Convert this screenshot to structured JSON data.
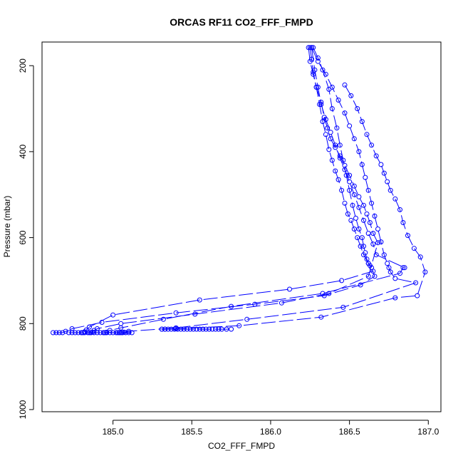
{
  "chart_data": {
    "type": "line",
    "title": "ORCAS RF11 CO2_FFF_FMPD",
    "xlabel": "CO2_FFF_FMPD",
    "ylabel": "Pressure (mbar)",
    "xlim": [
      184.55,
      187.08
    ],
    "ylim": [
      1005,
      145
    ],
    "y_reversed": true,
    "x_ticks": [
      185.0,
      185.5,
      186.0,
      186.5,
      187.0
    ],
    "x_tick_labels": [
      "185.0",
      "185.5",
      "186.0",
      "186.5",
      "187.0"
    ],
    "y_ticks": [
      200,
      400,
      600,
      800,
      1000
    ],
    "y_tick_labels": [
      "200",
      "400",
      "600",
      "800",
      "1000"
    ],
    "grid": false,
    "legend": "none",
    "line_color": "#0000ff",
    "series": [
      {
        "x": [
          186.27,
          186.3,
          186.33,
          186.37,
          186.39,
          186.42,
          186.44,
          186.46,
          186.48,
          186.5,
          186.52,
          186.54,
          186.56,
          186.58,
          186.59,
          186.6,
          186.61,
          186.62,
          186.63,
          186.64,
          186.66,
          186.57,
          186.34,
          185.9,
          185.4,
          184.93,
          184.74,
          184.7,
          184.68,
          184.66,
          184.64,
          184.62
        ],
        "y": [
          158,
          182,
          210,
          255,
          300,
          345,
          385,
          420,
          455,
          490,
          525,
          555,
          580,
          600,
          620,
          635,
          650,
          660,
          665,
          670,
          690,
          710,
          735,
          755,
          775,
          797,
          812,
          818,
          821,
          821,
          821,
          821
        ]
      },
      {
        "x": [
          186.25,
          186.26,
          186.27,
          186.29,
          186.31,
          186.33,
          186.35,
          186.37,
          186.39,
          186.41,
          186.43,
          186.45,
          186.47,
          186.49,
          186.51,
          186.53,
          186.55,
          186.57,
          186.59,
          186.62,
          186.65,
          186.45,
          186.12,
          185.55,
          185.0,
          184.85,
          184.83,
          184.82,
          184.81,
          184.8
        ],
        "y": [
          158,
          185,
          215,
          250,
          290,
          330,
          360,
          395,
          420,
          445,
          465,
          490,
          520,
          545,
          560,
          580,
          600,
          620,
          640,
          660,
          678,
          700,
          720,
          745,
          780,
          808,
          815,
          819,
          821,
          821
        ]
      },
      {
        "x": [
          186.24,
          186.25,
          186.27,
          186.29,
          186.32,
          186.34,
          186.36,
          186.38,
          186.41,
          186.44,
          186.47,
          186.5,
          186.53,
          186.56,
          186.59,
          186.61,
          186.63,
          186.65,
          186.68,
          186.62,
          186.37,
          186.07,
          185.52,
          185.05,
          184.9,
          184.88,
          184.87,
          184.86,
          184.85
        ],
        "y": [
          158,
          190,
          220,
          250,
          285,
          320,
          345,
          370,
          390,
          410,
          432,
          455,
          480,
          505,
          525,
          545,
          565,
          590,
          612,
          690,
          730,
          752,
          778,
          800,
          812,
          816,
          820,
          821,
          821
        ]
      },
      {
        "x": [
          186.26,
          186.28,
          186.3,
          186.32,
          186.35,
          186.38,
          186.41,
          186.44,
          186.47,
          186.5,
          186.53,
          186.56,
          186.59,
          186.62,
          186.65,
          186.67,
          186.85,
          186.84,
          186.82,
          186.33,
          185.75,
          185.32,
          185.05,
          184.98,
          184.96,
          184.95,
          184.94
        ],
        "y": [
          158,
          210,
          250,
          290,
          325,
          355,
          385,
          415,
          442,
          470,
          500,
          530,
          560,
          590,
          615,
          640,
          670,
          670,
          683,
          730,
          760,
          790,
          810,
          816,
          820,
          821,
          821
        ]
      },
      {
        "x": [
          186.26,
          186.3,
          186.35,
          186.39,
          186.43,
          186.47,
          186.5,
          186.53,
          186.56,
          186.58,
          186.6,
          186.62,
          186.64,
          186.66,
          186.68,
          186.7,
          186.72,
          186.74,
          186.75,
          186.76,
          186.79,
          186.92,
          186.46,
          185.85,
          185.4,
          185.1,
          185.07,
          185.06,
          185.05,
          185.04,
          185.03
        ],
        "y": [
          158,
          190,
          220,
          250,
          280,
          310,
          340,
          370,
          400,
          430,
          460,
          490,
          520,
          550,
          580,
          610,
          640,
          660,
          670,
          680,
          695,
          705,
          762,
          790,
          810,
          818,
          820,
          821,
          821,
          821,
          821
        ]
      },
      {
        "x": [
          186.47,
          186.51,
          186.55,
          186.58,
          186.61,
          186.64,
          186.67,
          186.7,
          186.72,
          186.74,
          186.76,
          186.79,
          186.82,
          186.84,
          186.87,
          186.91,
          186.95,
          186.98,
          186.93,
          186.79,
          186.32,
          185.8,
          185.4,
          185.33,
          185.31
        ],
        "y": [
          245,
          270,
          300,
          330,
          360,
          385,
          410,
          430,
          450,
          470,
          490,
          510,
          535,
          565,
          595,
          625,
          645,
          680,
          735,
          740,
          785,
          805,
          812,
          813,
          813
        ]
      },
      {
        "x": [
          185.31,
          185.33,
          185.35,
          185.37,
          185.39,
          185.41,
          185.43,
          185.45,
          185.47,
          185.49,
          185.51,
          185.53,
          185.55,
          185.57,
          185.59,
          185.61,
          185.63,
          185.65,
          185.67,
          185.69,
          185.72,
          185.75
        ],
        "y": [
          813,
          813,
          813,
          813,
          813,
          813,
          813,
          813,
          813,
          813,
          813,
          813,
          813,
          813,
          813,
          813,
          813,
          813,
          813,
          813,
          813,
          813
        ]
      },
      {
        "x": [
          184.72,
          184.74,
          184.76,
          184.78,
          184.8,
          184.82,
          184.84,
          184.86,
          184.88,
          184.9,
          184.92,
          184.94,
          184.96,
          184.98,
          185.0,
          185.02,
          185.04,
          185.06,
          185.08,
          185.1,
          185.12
        ],
        "y": [
          821,
          821,
          821,
          821,
          821,
          821,
          821,
          821,
          821,
          821,
          821,
          821,
          821,
          821,
          821,
          821,
          821,
          821,
          821,
          821,
          821
        ]
      }
    ]
  }
}
